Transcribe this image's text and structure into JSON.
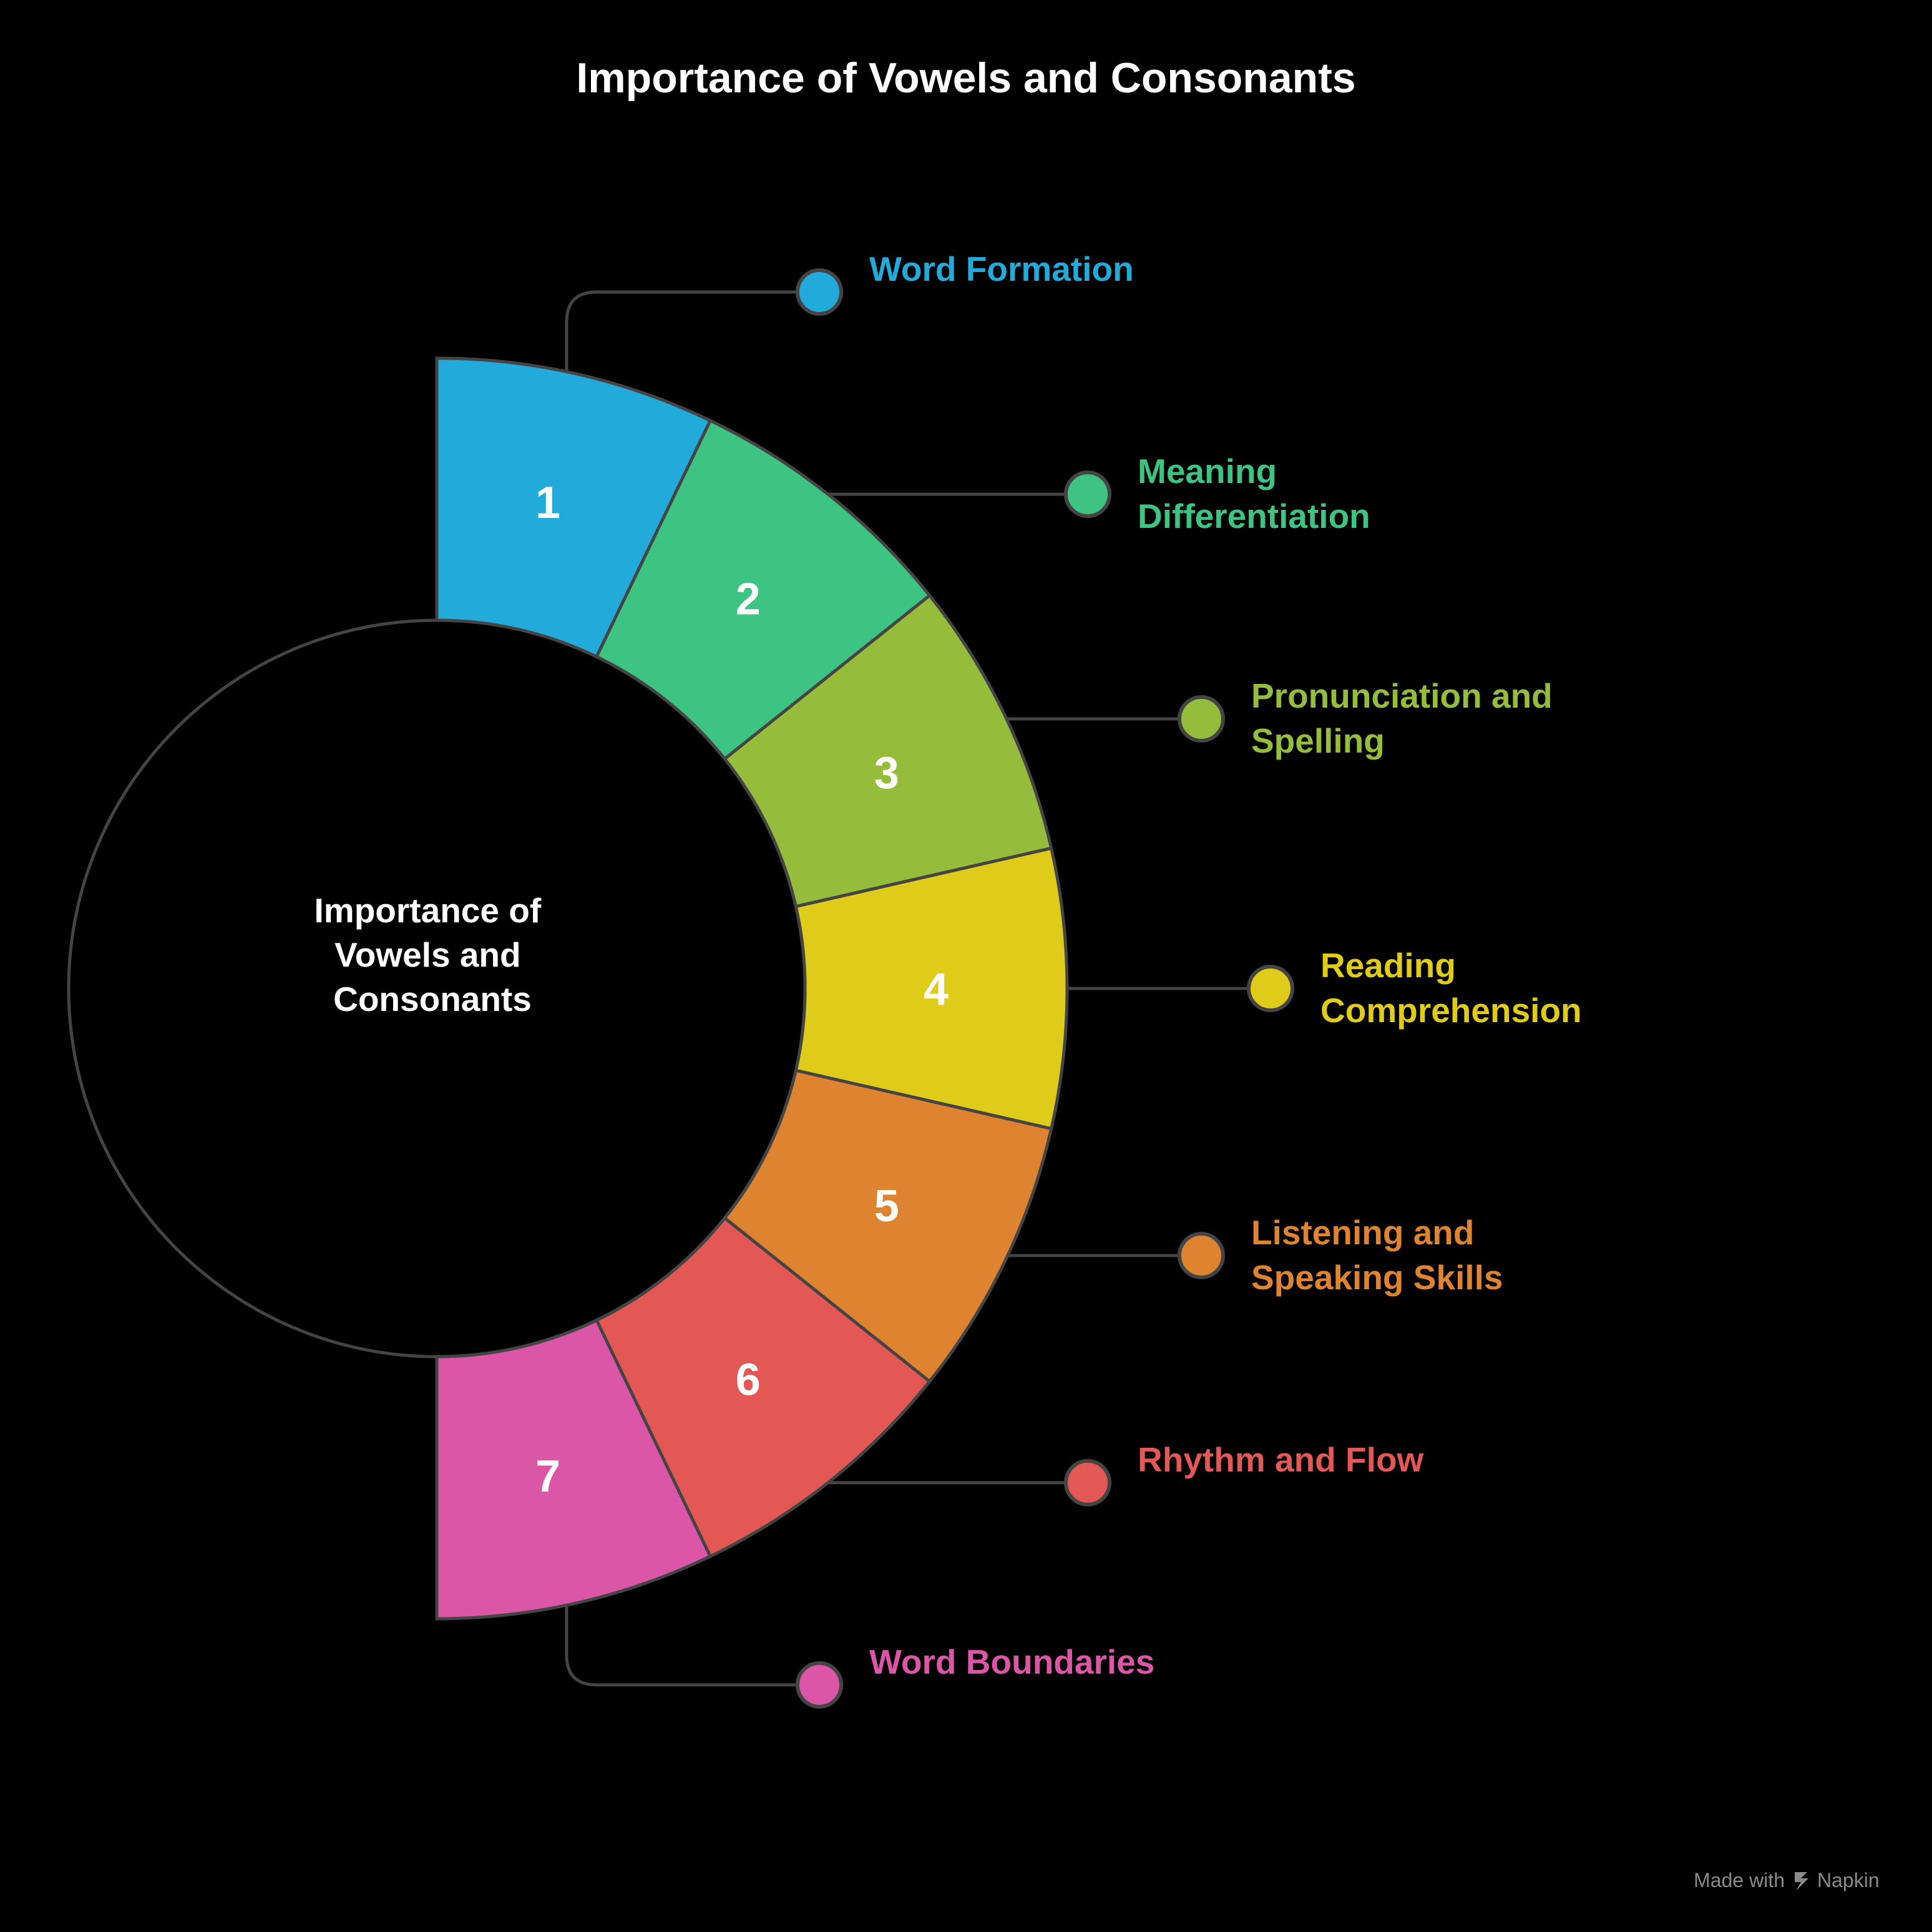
{
  "title": "Importance of Vowels and Consonants",
  "center_lines": [
    "Importance of",
    "Vowels and",
    "Consonants"
  ],
  "segments": [
    {
      "number": "1",
      "label_lines": [
        "Word Formation"
      ],
      "color": "#22ABDA"
    },
    {
      "number": "2",
      "label_lines": [
        "Meaning",
        "Differentiation"
      ],
      "color": "#3EC482"
    },
    {
      "number": "3",
      "label_lines": [
        "Pronunciation and",
        "Spelling"
      ],
      "color": "#95BD3B"
    },
    {
      "number": "4",
      "label_lines": [
        "Reading",
        "Comprehension"
      ],
      "color": "#DFCB19"
    },
    {
      "number": "5",
      "label_lines": [
        "Listening and",
        "Speaking Skills"
      ],
      "color": "#DE8330"
    },
    {
      "number": "6",
      "label_lines": [
        "Rhythm and Flow"
      ],
      "color": "#E35855"
    },
    {
      "number": "7",
      "label_lines": [
        "Word Boundaries"
      ],
      "color": "#DB56A7"
    }
  ],
  "footer": {
    "made_with": "Made with",
    "brand": "Napkin"
  },
  "colors": {
    "background": "#000000",
    "stroke": "#444444"
  }
}
